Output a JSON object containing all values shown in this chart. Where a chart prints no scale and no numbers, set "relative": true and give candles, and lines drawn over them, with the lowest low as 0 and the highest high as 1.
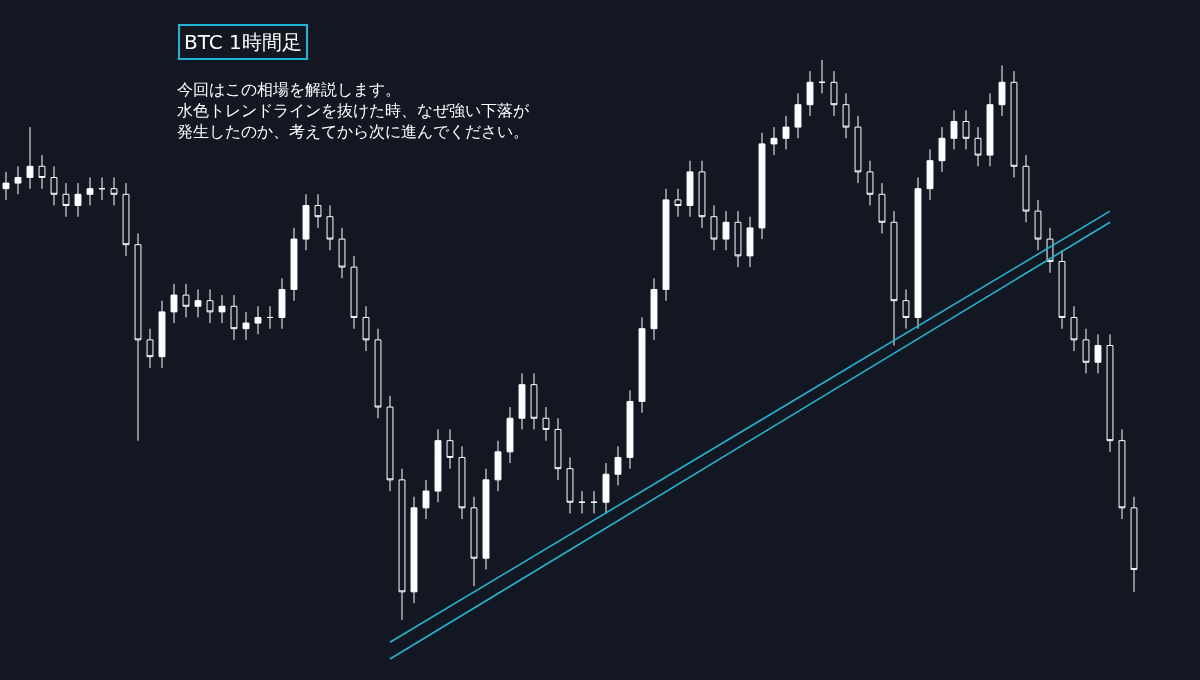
{
  "chart_data": {
    "type": "candlestick",
    "title": "BTC 1時間足",
    "relative": true,
    "annotations": [
      "今回はこの相場を解説します。",
      "水色トレンドラインを抜けた時、なぜ強い下落が",
      "発生したのか、考えてから次に進んでください。"
    ],
    "categories": [
      null,
      null,
      null,
      null,
      null,
      null,
      null,
      null,
      null,
      null,
      null,
      null,
      null,
      null,
      null,
      null,
      null,
      null,
      null,
      null,
      null,
      null,
      null,
      null,
      null,
      null,
      null,
      null,
      null,
      null,
      null,
      null,
      null,
      null,
      null,
      null,
      null,
      null,
      null,
      null,
      null,
      null,
      null,
      null,
      null,
      null,
      null,
      null,
      null,
      null,
      null,
      null,
      null,
      null,
      null,
      null,
      null,
      null,
      null,
      null,
      null,
      null,
      null,
      null,
      null,
      null,
      null,
      null,
      null,
      null,
      null,
      null,
      null,
      null,
      null,
      null,
      null,
      null,
      null,
      null,
      null,
      null,
      null,
      null,
      null,
      null,
      null,
      null,
      null,
      null,
      null,
      null,
      null,
      null,
      null
    ],
    "color": "#ffffff",
    "ohlc": [
      [
        0.77,
        0.8,
        0.75,
        0.78
      ],
      [
        0.78,
        0.81,
        0.76,
        0.79
      ],
      [
        0.79,
        0.88,
        0.77,
        0.81
      ],
      [
        0.81,
        0.83,
        0.77,
        0.79
      ],
      [
        0.79,
        0.81,
        0.74,
        0.76
      ],
      [
        0.76,
        0.78,
        0.72,
        0.74
      ],
      [
        0.74,
        0.78,
        0.72,
        0.76
      ],
      [
        0.76,
        0.79,
        0.74,
        0.77
      ],
      [
        0.77,
        0.79,
        0.75,
        0.77
      ],
      [
        0.77,
        0.79,
        0.74,
        0.76
      ],
      [
        0.76,
        0.78,
        0.65,
        0.67
      ],
      [
        0.67,
        0.69,
        0.32,
        0.5
      ],
      [
        0.5,
        0.52,
        0.45,
        0.47
      ],
      [
        0.47,
        0.57,
        0.45,
        0.55
      ],
      [
        0.55,
        0.6,
        0.53,
        0.58
      ],
      [
        0.58,
        0.6,
        0.54,
        0.56
      ],
      [
        0.56,
        0.59,
        0.54,
        0.57
      ],
      [
        0.57,
        0.59,
        0.53,
        0.55
      ],
      [
        0.55,
        0.58,
        0.53,
        0.56
      ],
      [
        0.56,
        0.58,
        0.5,
        0.52
      ],
      [
        0.52,
        0.55,
        0.5,
        0.53
      ],
      [
        0.53,
        0.56,
        0.51,
        0.54
      ],
      [
        0.54,
        0.56,
        0.52,
        0.54
      ],
      [
        0.54,
        0.61,
        0.52,
        0.59
      ],
      [
        0.59,
        0.7,
        0.57,
        0.68
      ],
      [
        0.68,
        0.76,
        0.66,
        0.74
      ],
      [
        0.74,
        0.76,
        0.7,
        0.72
      ],
      [
        0.72,
        0.74,
        0.66,
        0.68
      ],
      [
        0.68,
        0.7,
        0.61,
        0.63
      ],
      [
        0.63,
        0.65,
        0.52,
        0.54
      ],
      [
        0.54,
        0.56,
        0.48,
        0.5
      ],
      [
        0.5,
        0.52,
        0.36,
        0.38
      ],
      [
        0.38,
        0.4,
        0.23,
        0.25
      ],
      [
        0.25,
        0.27,
        0,
        0.05
      ],
      [
        0.05,
        0.22,
        0.03,
        0.2
      ],
      [
        0.2,
        0.25,
        0.18,
        0.23
      ],
      [
        0.23,
        0.34,
        0.21,
        0.32
      ],
      [
        0.32,
        0.34,
        0.27,
        0.29
      ],
      [
        0.29,
        0.31,
        0.18,
        0.2
      ],
      [
        0.2,
        0.22,
        0.06,
        0.11
      ],
      [
        0.11,
        0.27,
        0.09,
        0.25
      ],
      [
        0.25,
        0.32,
        0.23,
        0.3
      ],
      [
        0.3,
        0.38,
        0.28,
        0.36
      ],
      [
        0.36,
        0.44,
        0.34,
        0.42
      ],
      [
        0.42,
        0.44,
        0.34,
        0.36
      ],
      [
        0.36,
        0.38,
        0.32,
        0.34
      ],
      [
        0.34,
        0.36,
        0.25,
        0.27
      ],
      [
        0.27,
        0.29,
        0.19,
        0.21
      ],
      [
        0.21,
        0.23,
        0.19,
        0.21
      ],
      [
        0.21,
        0.23,
        0.19,
        0.21
      ],
      [
        0.21,
        0.28,
        0.19,
        0.26
      ],
      [
        0.26,
        0.31,
        0.24,
        0.29
      ],
      [
        0.29,
        0.41,
        0.27,
        0.39
      ],
      [
        0.39,
        0.54,
        0.37,
        0.52
      ],
      [
        0.52,
        0.61,
        0.5,
        0.59
      ],
      [
        0.59,
        0.77,
        0.57,
        0.75
      ],
      [
        0.75,
        0.77,
        0.72,
        0.74
      ],
      [
        0.74,
        0.82,
        0.72,
        0.8
      ],
      [
        0.8,
        0.82,
        0.7,
        0.72
      ],
      [
        0.72,
        0.74,
        0.66,
        0.68
      ],
      [
        0.68,
        0.73,
        0.66,
        0.71
      ],
      [
        0.71,
        0.73,
        0.63,
        0.65
      ],
      [
        0.65,
        0.72,
        0.63,
        0.7
      ],
      [
        0.7,
        0.87,
        0.68,
        0.85
      ],
      [
        0.85,
        0.88,
        0.83,
        0.86
      ],
      [
        0.86,
        0.9,
        0.84,
        0.88
      ],
      [
        0.88,
        0.94,
        0.86,
        0.92
      ],
      [
        0.92,
        0.98,
        0.9,
        0.96
      ],
      [
        0.96,
        1,
        0.94,
        0.96
      ],
      [
        0.96,
        0.98,
        0.9,
        0.92
      ],
      [
        0.92,
        0.94,
        0.86,
        0.88
      ],
      [
        0.88,
        0.9,
        0.78,
        0.8
      ],
      [
        0.8,
        0.82,
        0.74,
        0.76
      ],
      [
        0.76,
        0.78,
        0.69,
        0.71
      ],
      [
        0.71,
        0.73,
        0.49,
        0.57
      ],
      [
        0.57,
        0.59,
        0.52,
        0.54
      ],
      [
        0.54,
        0.79,
        0.52,
        0.77
      ],
      [
        0.77,
        0.84,
        0.75,
        0.82
      ],
      [
        0.82,
        0.88,
        0.8,
        0.86
      ],
      [
        0.86,
        0.91,
        0.84,
        0.89
      ],
      [
        0.89,
        0.91,
        0.84,
        0.86
      ],
      [
        0.86,
        0.88,
        0.81,
        0.83
      ],
      [
        0.83,
        0.94,
        0.81,
        0.92
      ],
      [
        0.92,
        0.99,
        0.9,
        0.96
      ],
      [
        0.96,
        0.98,
        0.79,
        0.81
      ],
      [
        0.81,
        0.83,
        0.71,
        0.73
      ],
      [
        0.73,
        0.75,
        0.66,
        0.68
      ],
      [
        0.68,
        0.7,
        0.62,
        0.64
      ],
      [
        0.64,
        0.66,
        0.52,
        0.54
      ],
      [
        0.54,
        0.56,
        0.48,
        0.5
      ],
      [
        0.5,
        0.52,
        0.44,
        0.46
      ],
      [
        0.46,
        0.51,
        0.44,
        0.49
      ],
      [
        0.49,
        0.51,
        0.3,
        0.32
      ],
      [
        0.32,
        0.34,
        0.18,
        0.2
      ],
      [
        0.2,
        0.22,
        0.05,
        0.09
      ]
    ],
    "series": [
      {
        "type": "line",
        "color": "#1fb6d6",
        "values": [
          null,
          null,
          null,
          null,
          null,
          null,
          null,
          null,
          null,
          null,
          null,
          null,
          null,
          null,
          null,
          null,
          null,
          null,
          null,
          null,
          null,
          null,
          null,
          null,
          null,
          null,
          null,
          null,
          null,
          null,
          null,
          null,
          -0.04,
          null,
          null,
          null,
          null,
          null,
          null,
          null,
          null,
          null,
          null,
          null,
          null,
          null,
          null,
          null,
          null,
          null,
          null,
          null,
          null,
          null,
          null,
          null,
          null,
          null,
          null,
          null,
          null,
          null,
          null,
          null,
          null,
          null,
          null,
          null,
          null,
          null,
          null,
          null,
          null,
          null,
          null,
          null,
          null,
          null,
          null,
          null,
          null,
          null,
          null,
          null,
          null,
          null,
          null,
          null,
          null,
          null,
          null,
          null,
          0.73,
          null,
          null
        ]
      },
      {
        "type": "line",
        "color": "#1fb6d6",
        "values": [
          null,
          null,
          null,
          null,
          null,
          null,
          null,
          null,
          null,
          null,
          null,
          null,
          null,
          null,
          null,
          null,
          null,
          null,
          null,
          null,
          null,
          null,
          null,
          null,
          null,
          null,
          null,
          null,
          null,
          null,
          null,
          null,
          -0.07,
          null,
          null,
          null,
          null,
          null,
          null,
          null,
          null,
          null,
          null,
          null,
          null,
          null,
          null,
          null,
          null,
          null,
          null,
          null,
          null,
          null,
          null,
          null,
          null,
          null,
          null,
          null,
          null,
          null,
          null,
          null,
          null,
          null,
          null,
          null,
          null,
          null,
          null,
          null,
          null,
          null,
          null,
          null,
          null,
          null,
          null,
          null,
          null,
          null,
          null,
          null,
          null,
          null,
          null,
          null,
          null,
          null,
          null,
          null,
          0.71,
          null,
          null
        ]
      }
    ]
  }
}
